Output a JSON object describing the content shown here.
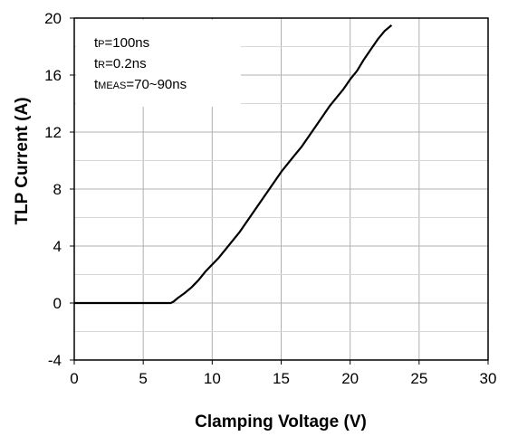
{
  "chart_data": {
    "type": "line",
    "title": "",
    "xlabel": "Clamping Voltage (V)",
    "ylabel": "TLP Current (A)",
    "xlim": [
      0,
      30
    ],
    "ylim": [
      -4,
      20
    ],
    "x_ticks": [
      "0",
      "5",
      "10",
      "15",
      "20",
      "25",
      "30"
    ],
    "y_ticks": [
      "20",
      "16",
      "12",
      "8",
      "4",
      "0",
      "-4"
    ],
    "grid": true,
    "legend": "none",
    "annotations": [
      {
        "main": "t",
        "sub": "P",
        "rest": "=100ns"
      },
      {
        "main": "t",
        "sub": "R",
        "rest": "=0.2ns"
      },
      {
        "main": "t",
        "sub": "MEAS",
        "rest": "=70~90ns"
      }
    ],
    "series": [
      {
        "color": "#000000",
        "x": [
          0,
          7.0,
          7.2,
          7.5,
          8.0,
          8.5,
          9.0,
          9.5,
          10.0,
          10.5,
          11.0,
          11.5,
          12.0,
          12.5,
          13.0,
          13.5,
          14.0,
          14.5,
          15.0,
          15.5,
          16.0,
          16.5,
          17.0,
          17.5,
          18.0,
          18.5,
          19.0,
          19.5,
          20.0,
          20.5,
          21.0,
          21.5,
          22.0,
          22.5,
          23.0
        ],
        "y": [
          0,
          0,
          0.1,
          0.35,
          0.7,
          1.1,
          1.6,
          2.2,
          2.7,
          3.2,
          3.8,
          4.4,
          5.0,
          5.7,
          6.4,
          7.1,
          7.8,
          8.5,
          9.2,
          9.8,
          10.4,
          11.0,
          11.7,
          12.4,
          13.1,
          13.8,
          14.4,
          15.0,
          15.7,
          16.3,
          17.1,
          17.8,
          18.5,
          19.1,
          19.5
        ]
      }
    ]
  }
}
